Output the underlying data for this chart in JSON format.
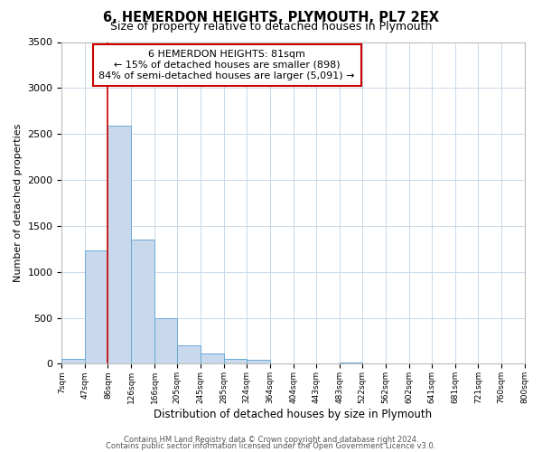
{
  "title": "6, HEMERDON HEIGHTS, PLYMOUTH, PL7 2EX",
  "subtitle": "Size of property relative to detached houses in Plymouth",
  "xlabel": "Distribution of detached houses by size in Plymouth",
  "ylabel": "Number of detached properties",
  "bar_color": "#c8d9ed",
  "bar_edge_color": "#6aaad4",
  "grid_color": "#c8d8e8",
  "background_color": "#ffffff",
  "tick_labels": [
    "7sqm",
    "47sqm",
    "86sqm",
    "126sqm",
    "166sqm",
    "205sqm",
    "245sqm",
    "285sqm",
    "324sqm",
    "364sqm",
    "404sqm",
    "443sqm",
    "483sqm",
    "522sqm",
    "562sqm",
    "602sqm",
    "641sqm",
    "681sqm",
    "721sqm",
    "760sqm",
    "800sqm"
  ],
  "bin_edges": [
    7,
    47,
    86,
    126,
    166,
    205,
    245,
    285,
    324,
    364,
    404,
    443,
    483,
    522,
    562,
    602,
    641,
    681,
    721,
    760,
    800
  ],
  "bar_heights": [
    50,
    1230,
    2590,
    1350,
    500,
    200,
    110,
    55,
    40,
    0,
    0,
    0,
    15,
    5,
    0,
    0,
    0,
    0,
    0,
    0
  ],
  "ylim": [
    0,
    3500
  ],
  "yticks": [
    0,
    500,
    1000,
    1500,
    2000,
    2500,
    3000,
    3500
  ],
  "property_line_x": 86,
  "annotation_title": "6 HEMERDON HEIGHTS: 81sqm",
  "annotation_line1": "← 15% of detached houses are smaller (898)",
  "annotation_line2": "84% of semi-detached houses are larger (5,091) →",
  "annotation_box_color": "#ffffff",
  "annotation_box_edge": "#cc0000",
  "annotation_text_color": "#000000",
  "vline_color": "#cc0000",
  "footer1": "Contains HM Land Registry data © Crown copyright and database right 2024.",
  "footer2": "Contains public sector information licensed under the Open Government Licence v3.0."
}
